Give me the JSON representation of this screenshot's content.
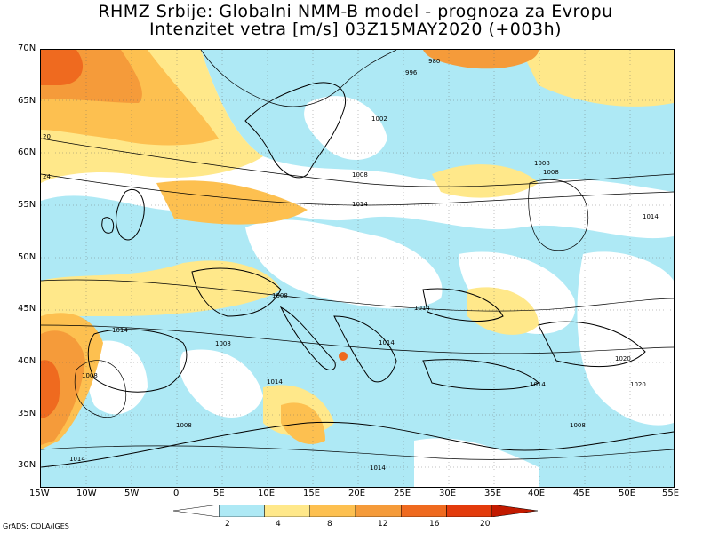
{
  "title": {
    "line1": "RHMZ Srbije: Globalni NMM-B model - prognoza za Evropu",
    "line2": "Intenzitet vetra [m/s] 03Z15MAY2020 (+003h)"
  },
  "x_ticks": [
    "15W",
    "10W",
    "5W",
    "0",
    "5E",
    "10E",
    "15E",
    "20E",
    "25E",
    "30E",
    "35E",
    "40E",
    "45E",
    "50E",
    "55E"
  ],
  "y_ticks": [
    "70N",
    "65N",
    "60N",
    "55N",
    "50N",
    "45N",
    "40N",
    "35N",
    "30N"
  ],
  "isobar_labels": [
    "996",
    "980",
    "1002",
    "20",
    "24",
    "1008",
    "1008",
    "1008",
    "1014",
    "1014",
    "1008",
    "1014",
    "1014",
    "1014",
    "1008",
    "1020",
    "1020",
    "1014",
    "1008",
    "1014",
    "1014",
    "1008",
    "1008",
    "1014"
  ],
  "legend": {
    "values": [
      "2",
      "4",
      "8",
      "12",
      "16",
      "20"
    ],
    "colors": [
      "#ffffff",
      "#aee9f5",
      "#ffe88a",
      "#fdc050",
      "#f59b3a",
      "#ef6a1f",
      "#e33b0c",
      "#c21a00"
    ]
  },
  "credit": "GrADS: COLA/IGES"
}
